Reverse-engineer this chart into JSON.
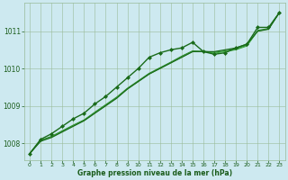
{
  "xlabel": "Graphe pression niveau de la mer (hPa)",
  "background_color": "#cde9f0",
  "plot_bg_color": "#cde9f0",
  "grid_color": "#99bb99",
  "text_color": "#1a5c1a",
  "xlim": [
    -0.5,
    23.5
  ],
  "ylim": [
    1007.55,
    1011.75
  ],
  "yticks": [
    1008,
    1009,
    1010,
    1011
  ],
  "xticks": [
    0,
    1,
    2,
    3,
    4,
    5,
    6,
    7,
    8,
    9,
    10,
    11,
    12,
    13,
    14,
    15,
    16,
    17,
    18,
    19,
    20,
    21,
    22,
    23
  ],
  "series": [
    {
      "x": [
        0,
        1,
        2,
        3,
        4,
        5,
        6,
        7,
        8,
        9,
        10,
        11,
        12,
        13,
        14,
        15,
        16,
        17,
        18,
        19,
        20,
        21,
        22,
        23
      ],
      "y": [
        1007.72,
        1008.1,
        1008.25,
        1008.45,
        1008.65,
        1008.8,
        1009.05,
        1009.25,
        1009.5,
        1009.75,
        1010.0,
        1010.3,
        1010.42,
        1010.5,
        1010.55,
        1010.7,
        1010.45,
        1010.38,
        1010.42,
        1010.55,
        1010.65,
        1011.1,
        1011.1,
        1011.5
      ],
      "color": "#1a6b1a",
      "lw": 1.0,
      "marker": "D",
      "ms": 2.0,
      "zorder": 5
    },
    {
      "x": [
        0,
        1,
        2,
        3,
        4,
        5,
        6,
        7,
        8,
        9,
        10,
        11,
        12,
        13,
        14,
        15,
        16,
        17,
        18,
        19,
        20,
        21,
        22,
        23
      ],
      "y": [
        1007.72,
        1008.05,
        1008.15,
        1008.3,
        1008.45,
        1008.6,
        1008.8,
        1009.0,
        1009.2,
        1009.45,
        1009.65,
        1009.85,
        1010.0,
        1010.15,
        1010.3,
        1010.45,
        1010.45,
        1010.45,
        1010.5,
        1010.55,
        1010.65,
        1011.0,
        1011.05,
        1011.5
      ],
      "color": "#1a6b1a",
      "lw": 0.9,
      "marker": null,
      "ms": 0,
      "zorder": 3
    },
    {
      "x": [
        0,
        1,
        2,
        3,
        4,
        5,
        6,
        7,
        8,
        9,
        10,
        11,
        12,
        13,
        14,
        15,
        16,
        17,
        18,
        19,
        20,
        21,
        22,
        23
      ],
      "y": [
        1007.72,
        1008.08,
        1008.18,
        1008.33,
        1008.48,
        1008.62,
        1008.83,
        1009.03,
        1009.23,
        1009.47,
        1009.67,
        1009.87,
        1010.02,
        1010.17,
        1010.33,
        1010.47,
        1010.46,
        1010.43,
        1010.47,
        1010.52,
        1010.62,
        1011.02,
        1011.07,
        1011.5
      ],
      "color": "#2d8b2d",
      "lw": 0.8,
      "marker": null,
      "ms": 0,
      "zorder": 2
    },
    {
      "x": [
        0,
        1,
        2,
        3,
        4,
        5,
        6,
        7,
        8,
        9,
        10,
        11,
        12,
        13,
        14,
        15,
        16,
        17,
        18,
        19,
        20,
        21,
        22,
        23
      ],
      "y": [
        1007.72,
        1008.06,
        1008.16,
        1008.31,
        1008.46,
        1008.6,
        1008.81,
        1009.01,
        1009.21,
        1009.45,
        1009.65,
        1009.85,
        1010.0,
        1010.15,
        1010.3,
        1010.45,
        1010.45,
        1010.41,
        1010.45,
        1010.5,
        1010.6,
        1011.0,
        1011.06,
        1011.5
      ],
      "color": "#3aaa3a",
      "lw": 0.7,
      "marker": null,
      "ms": 0,
      "zorder": 2
    }
  ]
}
